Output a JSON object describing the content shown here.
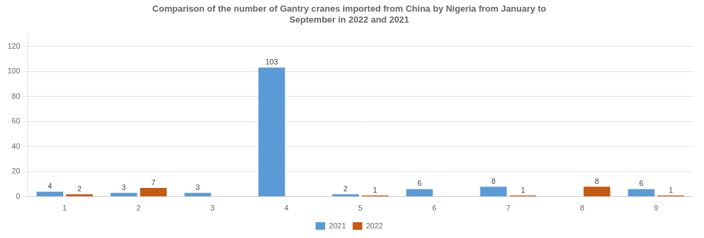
{
  "chart_data": {
    "type": "bar",
    "title": "Comparison of the number of Gantry cranes imported from China by Nigeria from January to\nSeptember in 2022 and 2021",
    "categories": [
      "1",
      "2",
      "3",
      "4",
      "5",
      "6",
      "7",
      "8",
      "9"
    ],
    "series": [
      {
        "name": "2021",
        "color": "#5B9BD5",
        "values": [
          4,
          3,
          3,
          103,
          2,
          6,
          8,
          0,
          6
        ],
        "value_labels": [
          "4",
          "3",
          "3",
          "103",
          "2",
          "6",
          "8",
          null,
          "6"
        ]
      },
      {
        "name": "2022",
        "color": "#C55A11",
        "values": [
          2,
          7,
          0,
          0,
          1,
          0,
          1,
          8,
          1
        ],
        "value_labels": [
          "2",
          "7",
          null,
          null,
          "1",
          null,
          "1",
          "8",
          "1"
        ]
      }
    ],
    "ylim": [
      0,
      130
    ],
    "yticks": [
      0,
      20,
      40,
      60,
      80,
      100,
      120
    ],
    "grid": true,
    "legend": "bottom",
    "data_labels": true
  }
}
